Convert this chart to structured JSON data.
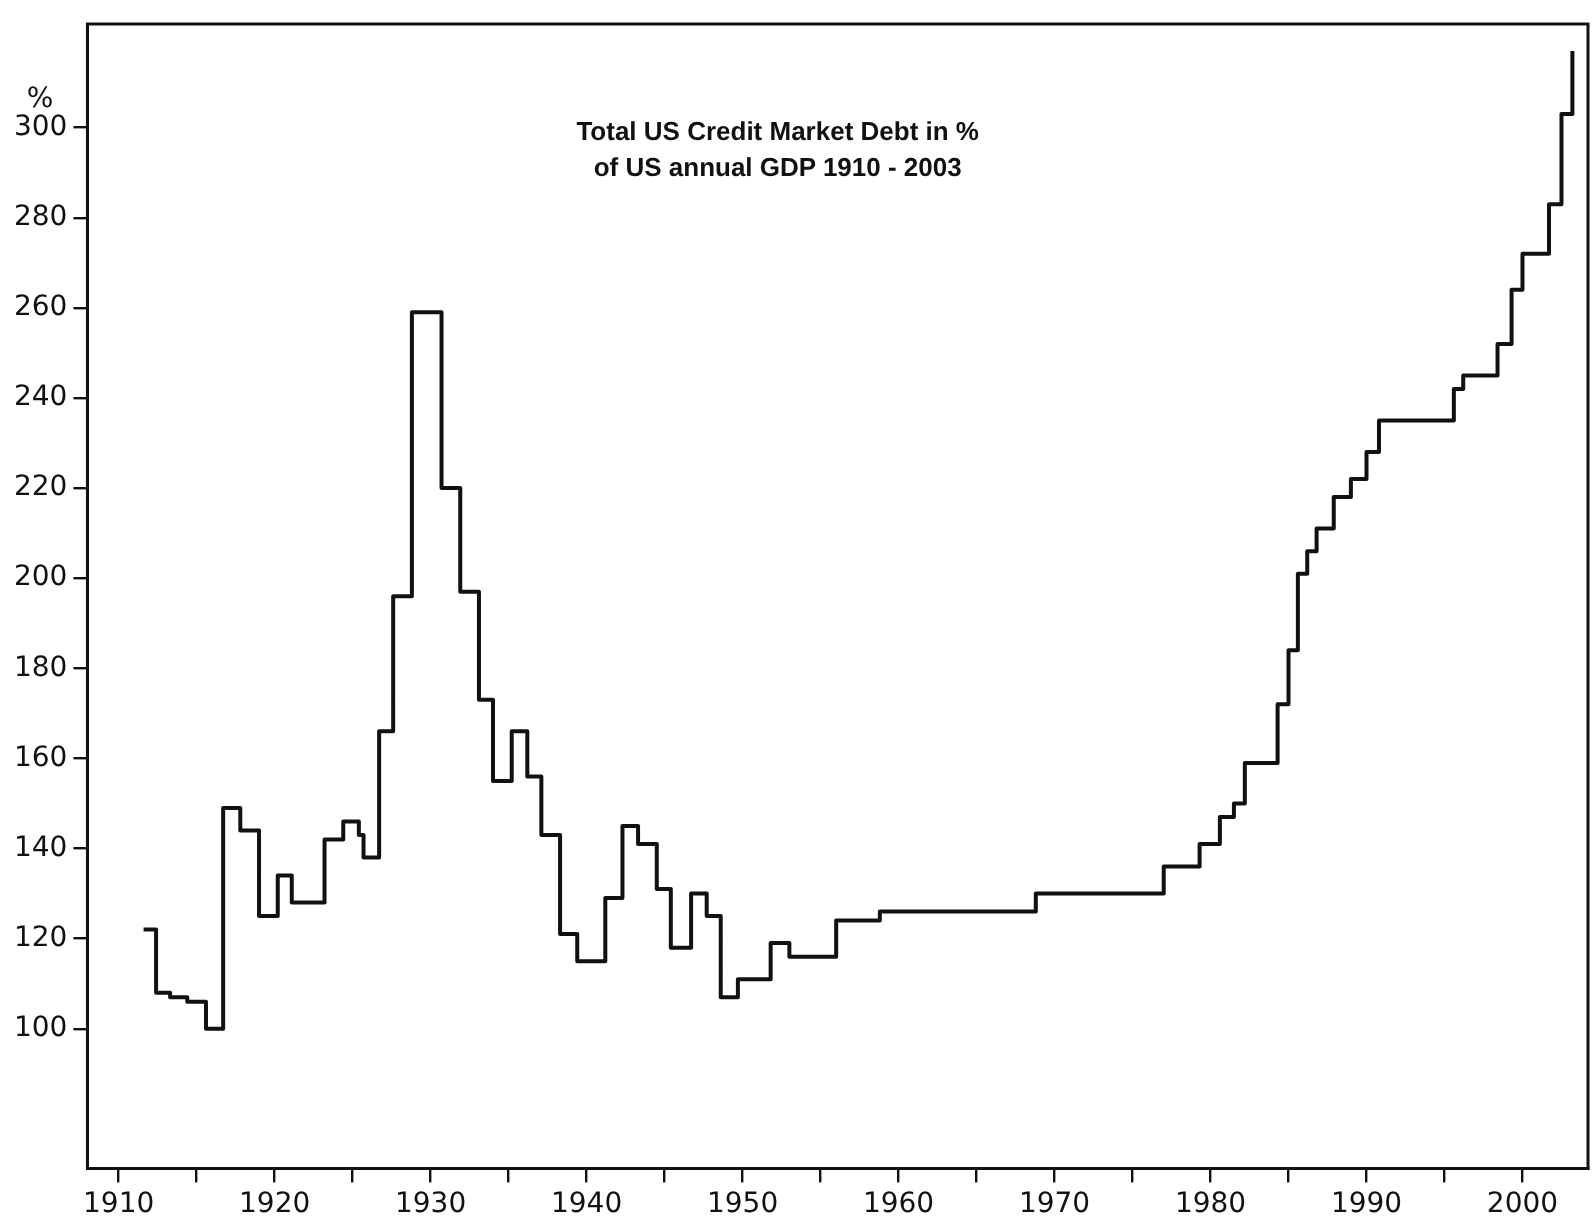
{
  "chart_data": {
    "type": "step",
    "title": "Total US Credit Market Debt in % of US annual GDP 1910 - 2003",
    "ylabel": "%",
    "x": [
      1911.6,
      1912.4,
      1913.3,
      1914.4,
      1915.6,
      1916.7,
      1917.8,
      1919.0,
      1920.2,
      1921.1,
      1923.2,
      1924.4,
      1925.4,
      1925.7,
      1926.7,
      1927.6,
      1928.8,
      1930.7,
      1931.9,
      1933.1,
      1934.0,
      1935.2,
      1936.2,
      1937.1,
      1938.3,
      1939.4,
      1941.2,
      1942.3,
      1943.3,
      1944.5,
      1945.4,
      1946.7,
      1947.7,
      1948.6,
      1949.7,
      1951.8,
      1953.0,
      1956.0,
      1958.8,
      1968.8,
      1977.0,
      1979.3,
      1980.6,
      1981.5,
      1982.2,
      1984.3,
      1985.0,
      1985.6,
      1986.2,
      1986.8,
      1987.9,
      1989.0,
      1990.0,
      1990.8,
      1995.6,
      1996.2,
      1998.4,
      1999.3,
      2000.0,
      2001.7,
      2002.5,
      2003.2
    ],
    "values": [
      122,
      108,
      107,
      106,
      100,
      149,
      144,
      125,
      134,
      128,
      142,
      146,
      143,
      138,
      166,
      196,
      259,
      220,
      197,
      173,
      155,
      166,
      156,
      143,
      121,
      115,
      129,
      145,
      141,
      131,
      118,
      130,
      125,
      107,
      111,
      119,
      116,
      124,
      126,
      130,
      136,
      141,
      147,
      150,
      159,
      172,
      184,
      201,
      206,
      211,
      218,
      222,
      228,
      235,
      242,
      245,
      252,
      264,
      272,
      283,
      303,
      317
    ],
    "color": "#111111",
    "xlim": [
      1908,
      2004.2
    ],
    "xticks": [
      1910,
      {
        "value": 1915,
        "label": null
      },
      1920,
      {
        "value": 1925,
        "label": null
      },
      1930,
      {
        "value": 1935,
        "label": null
      },
      1940,
      {
        "value": 1945,
        "label": null
      },
      1950,
      {
        "value": 1955,
        "label": null
      },
      1960,
      {
        "value": 1965,
        "label": null
      },
      1970,
      {
        "value": 1975,
        "label": null
      },
      1980,
      {
        "value": 1985,
        "label": null
      },
      1990,
      {
        "value": 1995,
        "label": null
      },
      2000
    ],
    "ylim": [
      69,
      323
    ],
    "yticks": [
      100,
      120,
      140,
      160,
      180,
      200,
      220,
      240,
      260,
      280,
      300
    ],
    "grid": false,
    "legend": false,
    "marker": "none",
    "line_style": "solid"
  }
}
